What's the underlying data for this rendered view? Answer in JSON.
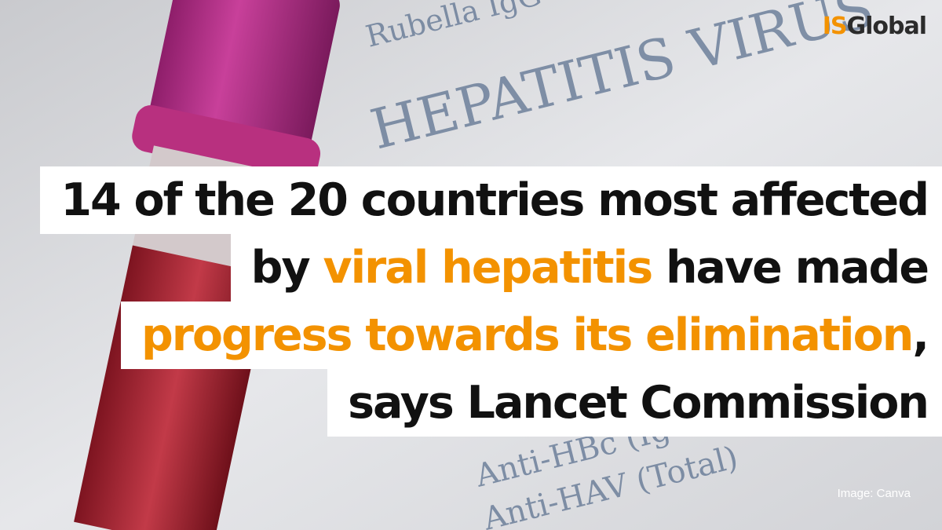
{
  "logo": {
    "segments": [
      {
        "text": "IS",
        "color": "#f39200"
      },
      {
        "text": "Global",
        "color": "#2b2b2b"
      }
    ]
  },
  "background_text": [
    "HEPATITIS VIRUS",
    "Rubella IgG",
    "Anti-HBc (Ig",
    "Anti-HAV (Total)"
  ],
  "headline": {
    "lines": [
      [
        {
          "text": "14 of the 20 countries most affected",
          "color": "#111111"
        }
      ],
      [
        {
          "text": "by ",
          "color": "#111111"
        },
        {
          "text": "viral hepatitis",
          "color": "#f39200"
        },
        {
          "text": " have made",
          "color": "#111111"
        }
      ],
      [
        {
          "text": "progress towards its elimination",
          "color": "#f39200"
        },
        {
          "text": ",",
          "color": "#111111"
        }
      ],
      [
        {
          "text": "says Lancet Commission",
          "color": "#111111"
        }
      ]
    ]
  },
  "credit": "Image: Canva"
}
